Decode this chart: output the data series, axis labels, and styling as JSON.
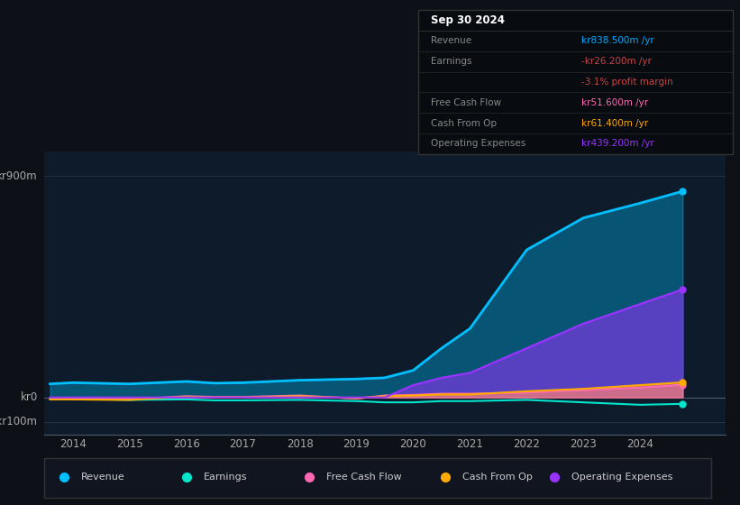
{
  "background_color": "#0d1117",
  "plot_bg_color": "#0d1b2a",
  "ylim": [
    -150,
    1000
  ],
  "xlim": [
    2013.5,
    2025.5
  ],
  "years": [
    2013.6,
    2014.0,
    2015.0,
    2016.0,
    2016.5,
    2017.0,
    2018.0,
    2019.0,
    2019.5,
    2020.0,
    2020.5,
    2021.0,
    2022.0,
    2023.0,
    2024.0,
    2024.75
  ],
  "revenue": [
    55,
    60,
    55,
    65,
    58,
    60,
    70,
    75,
    80,
    110,
    200,
    280,
    600,
    730,
    790,
    838.5
  ],
  "earnings": [
    -5,
    -5,
    -10,
    -8,
    -12,
    -12,
    -10,
    -15,
    -20,
    -20,
    -15,
    -15,
    -10,
    -20,
    -30,
    -26.2
  ],
  "free_cash_flow": [
    -5,
    -5,
    -8,
    5,
    2,
    2,
    8,
    -5,
    8,
    10,
    15,
    15,
    20,
    30,
    40,
    51.6
  ],
  "cash_from_op": [
    -8,
    -8,
    -10,
    3,
    0,
    0,
    5,
    -3,
    5,
    8,
    12,
    12,
    25,
    35,
    50,
    61.4
  ],
  "operating_expenses": [
    0,
    0,
    0,
    0,
    0,
    0,
    0,
    0,
    0,
    50,
    80,
    100,
    200,
    300,
    380,
    439.2
  ],
  "revenue_color": "#00bfff",
  "earnings_color": "#00e5cc",
  "free_cash_flow_color": "#ff69b4",
  "cash_from_op_color": "#ffaa00",
  "operating_expenses_color": "#9933ff",
  "grid_color": "#2a3a4a",
  "ytick_labels": [
    "kr900m",
    "kr0",
    "-kr100m"
  ],
  "ytick_values": [
    900,
    0,
    -100
  ],
  "xtick_years": [
    2014,
    2015,
    2016,
    2017,
    2018,
    2019,
    2020,
    2021,
    2022,
    2023,
    2024
  ],
  "table_title": "Sep 30 2024",
  "table_rows": [
    {
      "label": "Revenue",
      "value": "kr838.500m /yr",
      "label_color": "#888888",
      "value_color": "#00aaff"
    },
    {
      "label": "Earnings",
      "value": "-kr26.200m /yr",
      "label_color": "#888888",
      "value_color": "#cc4444"
    },
    {
      "label": "",
      "value": "-3.1% profit margin",
      "label_color": "#888888",
      "value_color": "#cc4444"
    },
    {
      "label": "Free Cash Flow",
      "value": "kr51.600m /yr",
      "label_color": "#888888",
      "value_color": "#ff69b4"
    },
    {
      "label": "Cash From Op",
      "value": "kr61.400m /yr",
      "label_color": "#888888",
      "value_color": "#ffaa00"
    },
    {
      "label": "Operating Expenses",
      "value": "kr439.200m /yr",
      "label_color": "#888888",
      "value_color": "#9933ff"
    }
  ],
  "legend_items": [
    {
      "label": "Revenue",
      "color": "#00bfff"
    },
    {
      "label": "Earnings",
      "color": "#00e5cc"
    },
    {
      "label": "Free Cash Flow",
      "color": "#ff69b4"
    },
    {
      "label": "Cash From Op",
      "color": "#ffaa00"
    },
    {
      "label": "Operating Expenses",
      "color": "#9933ff"
    }
  ]
}
